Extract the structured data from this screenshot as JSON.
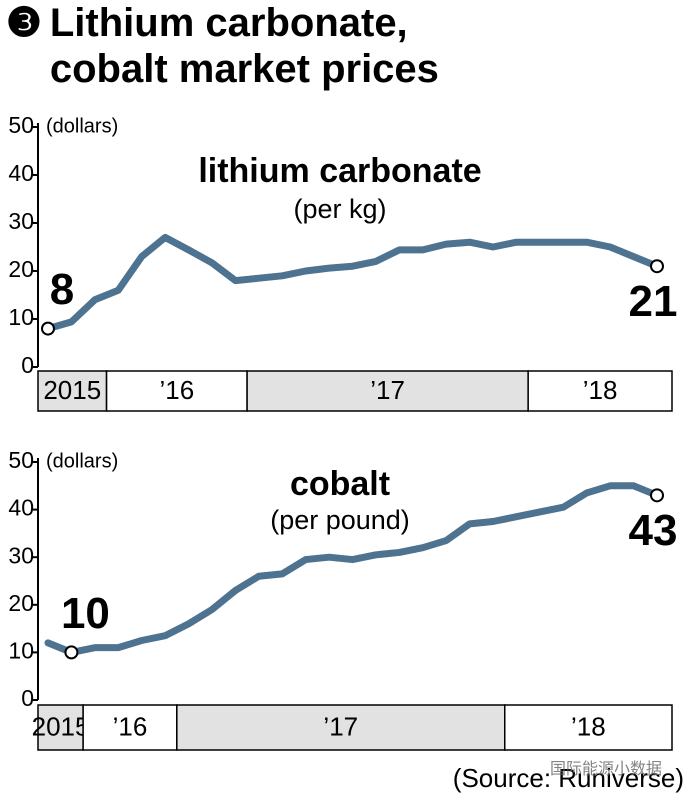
{
  "header": {
    "number": "❸",
    "title": "Lithium carbonate, cobalt market prices"
  },
  "chart_data": [
    {
      "type": "line",
      "title": "lithium carbonate",
      "subtitle": "(per kg)",
      "y_label": "(dollars)",
      "categories": [
        "2015",
        null,
        null,
        "’16",
        null,
        null,
        null,
        null,
        null,
        "’17",
        null,
        null,
        null,
        null,
        null,
        null,
        null,
        null,
        null,
        null,
        null,
        "’18",
        null,
        null,
        null,
        null,
        null
      ],
      "series": [
        {
          "name": "lithium carbonate",
          "color": "#4e7391",
          "values": [
            8,
            9.4,
            14,
            16,
            23,
            27,
            24.4,
            21.7,
            18,
            18.5,
            19,
            20,
            20.6,
            21,
            22,
            24.4,
            24.4,
            25.6,
            26,
            25,
            26,
            26,
            26,
            26,
            25,
            23,
            21
          ],
          "value_labels": [
            "8",
            null,
            null,
            null,
            null,
            null,
            null,
            null,
            null,
            null,
            null,
            null,
            null,
            null,
            null,
            null,
            null,
            null,
            null,
            null,
            null,
            null,
            null,
            null,
            null,
            null,
            "21"
          ]
        }
      ],
      "ylim": [
        0,
        50
      ],
      "yticks": [
        0,
        10,
        20,
        30,
        40,
        50
      ]
    },
    {
      "type": "line",
      "title": "cobalt",
      "subtitle": "(per pound)",
      "y_label": "(dollars)",
      "categories": [
        "2015",
        null,
        "’16",
        null,
        null,
        null,
        "’17",
        null,
        null,
        null,
        null,
        null,
        null,
        null,
        null,
        null,
        null,
        null,
        null,
        null,
        "’18",
        null,
        null,
        null,
        null,
        null,
        null
      ],
      "series": [
        {
          "name": "cobalt",
          "color": "#4e7391",
          "values": [
            12,
            10,
            11,
            11,
            12.5,
            13.5,
            16,
            19,
            23,
            26,
            26.5,
            29.5,
            30,
            29.5,
            30.5,
            31,
            32,
            33.5,
            37,
            37.5,
            38.5,
            39.5,
            40.5,
            43.5,
            45,
            45,
            43
          ],
          "value_labels": [
            null,
            "10",
            null,
            null,
            null,
            null,
            null,
            null,
            null,
            null,
            null,
            null,
            null,
            null,
            null,
            null,
            null,
            null,
            null,
            null,
            null,
            null,
            null,
            null,
            null,
            null,
            "43"
          ]
        }
      ],
      "ylim": [
        0,
        50
      ],
      "yticks": [
        0,
        10,
        20,
        30,
        40,
        50
      ]
    }
  ],
  "source": "(Source: Runiverse)",
  "watermark": "国际能源小数据"
}
